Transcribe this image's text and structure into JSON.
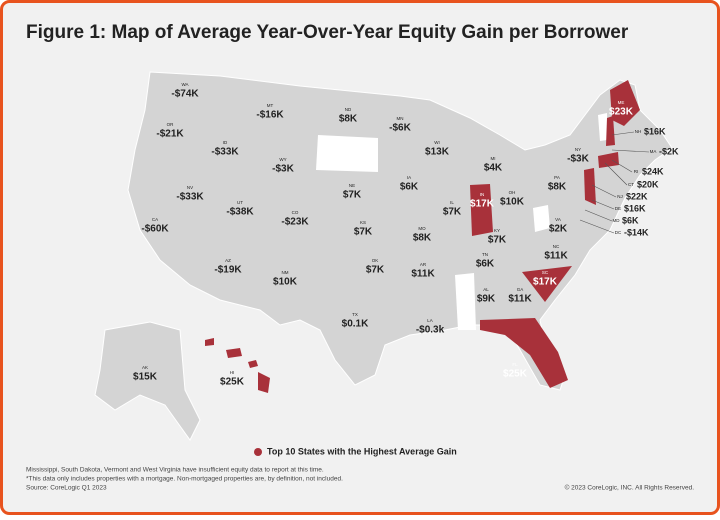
{
  "title": "Figure 1: Map of Average Year-Over-Year Equity Gain per Borrower",
  "highlight_color": "#a8313a",
  "base_color": "#d4d4d4",
  "no_data_color": "#ffffff",
  "states": [
    {
      "code": "WA",
      "value": "-$74K",
      "highlight": false
    },
    {
      "code": "OR",
      "value": "-$21K",
      "highlight": false
    },
    {
      "code": "ID",
      "value": "-$33K",
      "highlight": false
    },
    {
      "code": "MT",
      "value": "-$16K",
      "highlight": false
    },
    {
      "code": "WY",
      "value": "-$3K",
      "highlight": false
    },
    {
      "code": "NV",
      "value": "-$33K",
      "highlight": false
    },
    {
      "code": "UT",
      "value": "-$38K",
      "highlight": false
    },
    {
      "code": "CO",
      "value": "-$23K",
      "highlight": false
    },
    {
      "code": "CA",
      "value": "-$60K",
      "highlight": false
    },
    {
      "code": "AZ",
      "value": "-$19K",
      "highlight": false
    },
    {
      "code": "NM",
      "value": "$10K",
      "highlight": false
    },
    {
      "code": "ND",
      "value": "$8K",
      "highlight": false
    },
    {
      "code": "MN",
      "value": "-$6K",
      "highlight": false
    },
    {
      "code": "WI",
      "value": "$13K",
      "highlight": false
    },
    {
      "code": "MI",
      "value": "$4K",
      "highlight": false
    },
    {
      "code": "NE",
      "value": "$7K",
      "highlight": false
    },
    {
      "code": "IA",
      "value": "$6K",
      "highlight": false
    },
    {
      "code": "IL",
      "value": "$7K",
      "highlight": false
    },
    {
      "code": "IN",
      "value": "$17K",
      "highlight": true
    },
    {
      "code": "OH",
      "value": "$10K",
      "highlight": false
    },
    {
      "code": "KS",
      "value": "$7K",
      "highlight": false
    },
    {
      "code": "MO",
      "value": "$8K",
      "highlight": false
    },
    {
      "code": "KY",
      "value": "$7K",
      "highlight": false
    },
    {
      "code": "TN",
      "value": "$6K",
      "highlight": false
    },
    {
      "code": "OK",
      "value": "$7K",
      "highlight": false
    },
    {
      "code": "AR",
      "value": "$11K",
      "highlight": false
    },
    {
      "code": "TX",
      "value": "$0.1K",
      "highlight": false
    },
    {
      "code": "LA",
      "value": "-$0.3k",
      "highlight": false
    },
    {
      "code": "AL",
      "value": "$9K",
      "highlight": false
    },
    {
      "code": "GA",
      "value": "$11K",
      "highlight": false
    },
    {
      "code": "SC",
      "value": "$17K",
      "highlight": true
    },
    {
      "code": "NC",
      "value": "$11K",
      "highlight": false
    },
    {
      "code": "VA",
      "value": "$2K",
      "highlight": false
    },
    {
      "code": "PA",
      "value": "$8K",
      "highlight": false
    },
    {
      "code": "NY",
      "value": "-$3K",
      "highlight": false
    },
    {
      "code": "ME",
      "value": "$23K",
      "highlight": true
    },
    {
      "code": "NH",
      "value": "$16K",
      "highlight": true
    },
    {
      "code": "MA",
      "value": "-$2K",
      "highlight": false
    },
    {
      "code": "RI",
      "value": "$24K",
      "highlight": true
    },
    {
      "code": "CT",
      "value": "$20K",
      "highlight": true
    },
    {
      "code": "NJ",
      "value": "$22K",
      "highlight": true
    },
    {
      "code": "DE",
      "value": "$16K",
      "highlight": true
    },
    {
      "code": "MD",
      "value": "$6K",
      "highlight": false
    },
    {
      "code": "DC",
      "value": "-$14K",
      "highlight": false
    },
    {
      "code": "FL",
      "value": "$25K",
      "highlight": true
    },
    {
      "code": "AK",
      "value": "$15K",
      "highlight": false
    },
    {
      "code": "HI",
      "value": "$25K",
      "highlight": true
    }
  ],
  "legend": "Top 10 States with the Highest Average Gain",
  "footnotes": [
    "Mississippi, South Dakota, Vermont and West Virginia  have insufficient equity data to report at this time.",
    "*This data only includes properties with a mortgage. Non-mortgaged properties are, by definition, not included.",
    "Source: CoreLogic Q1 2023"
  ],
  "copyright": "© 2023 CoreLogic, INC. All Rights Reserved."
}
